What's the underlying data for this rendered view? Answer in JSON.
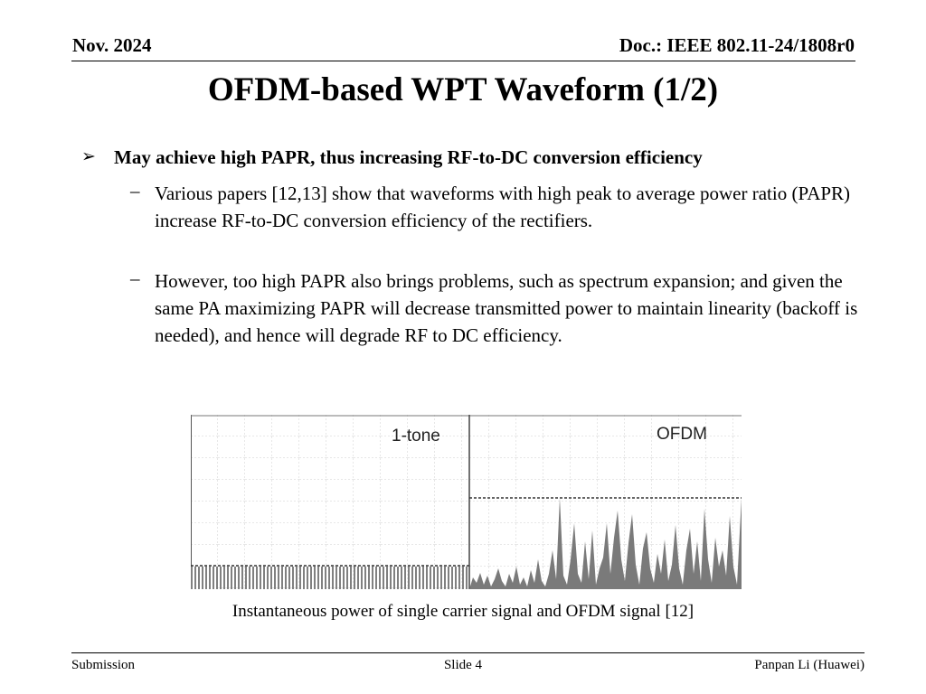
{
  "header": {
    "date": "Nov. 2024",
    "doc_id": "Doc.: IEEE 802.11-24/1808r0"
  },
  "title": "OFDM-based WPT Waveform (1/2)",
  "bullets": {
    "main": "May achieve high PAPR, thus increasing RF-to-DC conversion efficiency",
    "sub": [
      "Various papers [12,13] show that waveforms with high peak to average power ratio (PAPR) increase RF-to-DC conversion efficiency of the rectifiers.",
      "However, too high PAPR also brings problems, such as spectrum expansion; and given the same PA maximizing PAPR will decrease transmitted power to maintain linearity (backoff is needed), and hence will degrade RF to DC efficiency."
    ]
  },
  "figure": {
    "label_left": "1-tone",
    "label_right": "OFDM",
    "caption": "Instantaneous power of single carrier signal and OFDM signal [12]"
  },
  "footer": {
    "left": "Submission",
    "center": "Slide 4",
    "right": "Panpan Li (Huawei)"
  }
}
